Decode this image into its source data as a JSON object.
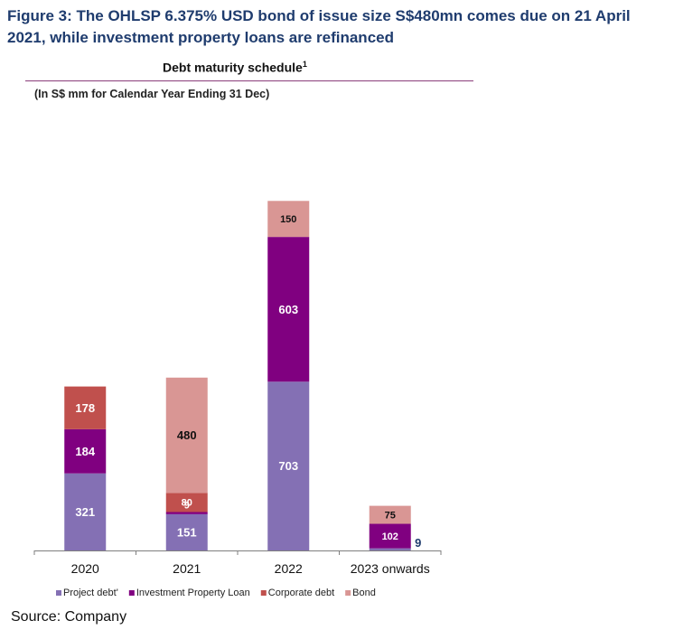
{
  "figure": {
    "title": "Figure 3: The OHLSP 6.375% USD bond of issue size S$480mn comes due on 21 April 2021, while investment property loans are refinanced",
    "source": "Source: Company"
  },
  "chart_data": {
    "type": "bar",
    "stacked": true,
    "title": "Debt maturity schedule",
    "title_footnote": "1",
    "subtitle": "(In S$ mm for Calendar Year Ending 31 Dec)",
    "xlabel": "",
    "ylabel": "",
    "ylim": [
      0,
      1500
    ],
    "grid": false,
    "legend_position": "bottom",
    "categories": [
      "2020",
      "2021",
      "2022",
      "2023 onwards"
    ],
    "series": [
      {
        "name": "Project debt'",
        "color": "#8470b4",
        "values": [
          321,
          151,
          703,
          9
        ],
        "label_color": "#ffffff"
      },
      {
        "name": "Investment Property Loan",
        "color": "#800080",
        "values": [
          184,
          9,
          603,
          102
        ],
        "label_color": "#ffffff"
      },
      {
        "name": "Corporate debt",
        "color": "#c0504d",
        "values": [
          178,
          80,
          0,
          0
        ],
        "label_color": "#ffffff"
      },
      {
        "name": "Bond",
        "color": "#d99694",
        "values": [
          0,
          480,
          150,
          75
        ],
        "label_color": "#111111"
      }
    ]
  }
}
